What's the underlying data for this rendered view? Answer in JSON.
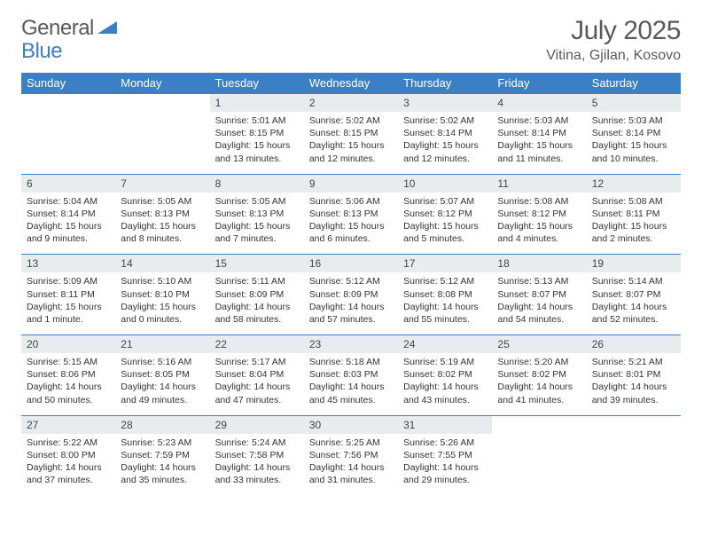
{
  "logo": {
    "word1": "General",
    "word2": "Blue"
  },
  "title": {
    "month": "July 2025",
    "location": "Vitina, Gjilan, Kosovo"
  },
  "colors": {
    "header_bg": "#3b7fc4",
    "header_fg": "#ffffff",
    "daynum_bg": "#e9ecef",
    "rule": "#3b7fc4",
    "text": "#333333",
    "logo_gray": "#5a5a5a",
    "logo_blue": "#3b7fc4",
    "page_bg": "#ffffff"
  },
  "day_headers": [
    "Sunday",
    "Monday",
    "Tuesday",
    "Wednesday",
    "Thursday",
    "Friday",
    "Saturday"
  ],
  "weeks": [
    [
      null,
      null,
      {
        "n": "1",
        "sr": "Sunrise: 5:01 AM",
        "ss": "Sunset: 8:15 PM",
        "d1": "Daylight: 15 hours",
        "d2": "and 13 minutes."
      },
      {
        "n": "2",
        "sr": "Sunrise: 5:02 AM",
        "ss": "Sunset: 8:15 PM",
        "d1": "Daylight: 15 hours",
        "d2": "and 12 minutes."
      },
      {
        "n": "3",
        "sr": "Sunrise: 5:02 AM",
        "ss": "Sunset: 8:14 PM",
        "d1": "Daylight: 15 hours",
        "d2": "and 12 minutes."
      },
      {
        "n": "4",
        "sr": "Sunrise: 5:03 AM",
        "ss": "Sunset: 8:14 PM",
        "d1": "Daylight: 15 hours",
        "d2": "and 11 minutes."
      },
      {
        "n": "5",
        "sr": "Sunrise: 5:03 AM",
        "ss": "Sunset: 8:14 PM",
        "d1": "Daylight: 15 hours",
        "d2": "and 10 minutes."
      }
    ],
    [
      {
        "n": "6",
        "sr": "Sunrise: 5:04 AM",
        "ss": "Sunset: 8:14 PM",
        "d1": "Daylight: 15 hours",
        "d2": "and 9 minutes."
      },
      {
        "n": "7",
        "sr": "Sunrise: 5:05 AM",
        "ss": "Sunset: 8:13 PM",
        "d1": "Daylight: 15 hours",
        "d2": "and 8 minutes."
      },
      {
        "n": "8",
        "sr": "Sunrise: 5:05 AM",
        "ss": "Sunset: 8:13 PM",
        "d1": "Daylight: 15 hours",
        "d2": "and 7 minutes."
      },
      {
        "n": "9",
        "sr": "Sunrise: 5:06 AM",
        "ss": "Sunset: 8:13 PM",
        "d1": "Daylight: 15 hours",
        "d2": "and 6 minutes."
      },
      {
        "n": "10",
        "sr": "Sunrise: 5:07 AM",
        "ss": "Sunset: 8:12 PM",
        "d1": "Daylight: 15 hours",
        "d2": "and 5 minutes."
      },
      {
        "n": "11",
        "sr": "Sunrise: 5:08 AM",
        "ss": "Sunset: 8:12 PM",
        "d1": "Daylight: 15 hours",
        "d2": "and 4 minutes."
      },
      {
        "n": "12",
        "sr": "Sunrise: 5:08 AM",
        "ss": "Sunset: 8:11 PM",
        "d1": "Daylight: 15 hours",
        "d2": "and 2 minutes."
      }
    ],
    [
      {
        "n": "13",
        "sr": "Sunrise: 5:09 AM",
        "ss": "Sunset: 8:11 PM",
        "d1": "Daylight: 15 hours",
        "d2": "and 1 minute."
      },
      {
        "n": "14",
        "sr": "Sunrise: 5:10 AM",
        "ss": "Sunset: 8:10 PM",
        "d1": "Daylight: 15 hours",
        "d2": "and 0 minutes."
      },
      {
        "n": "15",
        "sr": "Sunrise: 5:11 AM",
        "ss": "Sunset: 8:09 PM",
        "d1": "Daylight: 14 hours",
        "d2": "and 58 minutes."
      },
      {
        "n": "16",
        "sr": "Sunrise: 5:12 AM",
        "ss": "Sunset: 8:09 PM",
        "d1": "Daylight: 14 hours",
        "d2": "and 57 minutes."
      },
      {
        "n": "17",
        "sr": "Sunrise: 5:12 AM",
        "ss": "Sunset: 8:08 PM",
        "d1": "Daylight: 14 hours",
        "d2": "and 55 minutes."
      },
      {
        "n": "18",
        "sr": "Sunrise: 5:13 AM",
        "ss": "Sunset: 8:07 PM",
        "d1": "Daylight: 14 hours",
        "d2": "and 54 minutes."
      },
      {
        "n": "19",
        "sr": "Sunrise: 5:14 AM",
        "ss": "Sunset: 8:07 PM",
        "d1": "Daylight: 14 hours",
        "d2": "and 52 minutes."
      }
    ],
    [
      {
        "n": "20",
        "sr": "Sunrise: 5:15 AM",
        "ss": "Sunset: 8:06 PM",
        "d1": "Daylight: 14 hours",
        "d2": "and 50 minutes."
      },
      {
        "n": "21",
        "sr": "Sunrise: 5:16 AM",
        "ss": "Sunset: 8:05 PM",
        "d1": "Daylight: 14 hours",
        "d2": "and 49 minutes."
      },
      {
        "n": "22",
        "sr": "Sunrise: 5:17 AM",
        "ss": "Sunset: 8:04 PM",
        "d1": "Daylight: 14 hours",
        "d2": "and 47 minutes."
      },
      {
        "n": "23",
        "sr": "Sunrise: 5:18 AM",
        "ss": "Sunset: 8:03 PM",
        "d1": "Daylight: 14 hours",
        "d2": "and 45 minutes."
      },
      {
        "n": "24",
        "sr": "Sunrise: 5:19 AM",
        "ss": "Sunset: 8:02 PM",
        "d1": "Daylight: 14 hours",
        "d2": "and 43 minutes."
      },
      {
        "n": "25",
        "sr": "Sunrise: 5:20 AM",
        "ss": "Sunset: 8:02 PM",
        "d1": "Daylight: 14 hours",
        "d2": "and 41 minutes."
      },
      {
        "n": "26",
        "sr": "Sunrise: 5:21 AM",
        "ss": "Sunset: 8:01 PM",
        "d1": "Daylight: 14 hours",
        "d2": "and 39 minutes."
      }
    ],
    [
      {
        "n": "27",
        "sr": "Sunrise: 5:22 AM",
        "ss": "Sunset: 8:00 PM",
        "d1": "Daylight: 14 hours",
        "d2": "and 37 minutes."
      },
      {
        "n": "28",
        "sr": "Sunrise: 5:23 AM",
        "ss": "Sunset: 7:59 PM",
        "d1": "Daylight: 14 hours",
        "d2": "and 35 minutes."
      },
      {
        "n": "29",
        "sr": "Sunrise: 5:24 AM",
        "ss": "Sunset: 7:58 PM",
        "d1": "Daylight: 14 hours",
        "d2": "and 33 minutes."
      },
      {
        "n": "30",
        "sr": "Sunrise: 5:25 AM",
        "ss": "Sunset: 7:56 PM",
        "d1": "Daylight: 14 hours",
        "d2": "and 31 minutes."
      },
      {
        "n": "31",
        "sr": "Sunrise: 5:26 AM",
        "ss": "Sunset: 7:55 PM",
        "d1": "Daylight: 14 hours",
        "d2": "and 29 minutes."
      },
      null,
      null
    ]
  ]
}
